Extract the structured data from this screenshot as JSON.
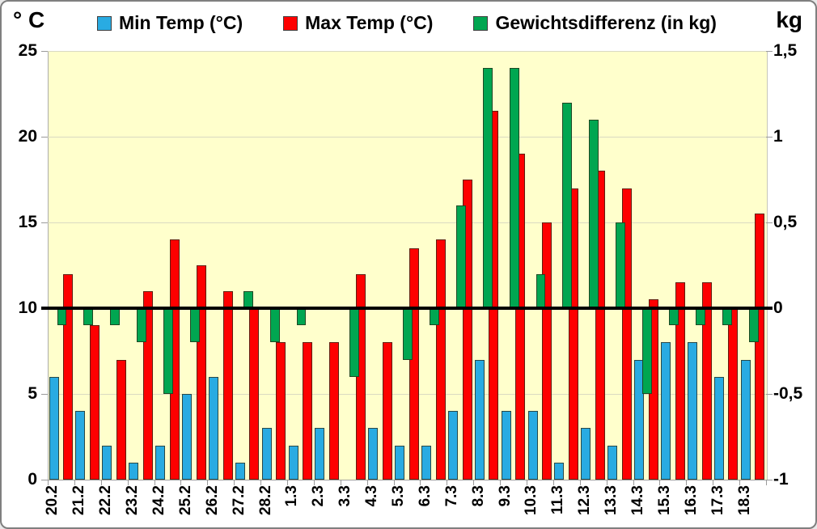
{
  "chart": {
    "left_axis_title": "° C",
    "right_axis_title": "kg"
  },
  "chart_data": {
    "type": "bar",
    "title": "",
    "legend_position": "top",
    "plot_background": "#FFFFCC",
    "grid": true,
    "categories": [
      "20.2",
      "21.2",
      "22.2",
      "23.2",
      "24.2",
      "25.2",
      "26.2",
      "27.2",
      "28.2",
      "1.3",
      "2.3",
      "3.3",
      "4.3",
      "5.3",
      "6.3",
      "7.3",
      "8.3",
      "9.3",
      "10.3",
      "11.3",
      "12.3",
      "13.3",
      "14.3",
      "15.3",
      "16.3",
      "17.3",
      "18.3"
    ],
    "series": [
      {
        "key": "min-temp",
        "name": "Min Temp (°C)",
        "axis": "left",
        "color": "#29ABE2",
        "values": [
          6,
          4,
          2,
          1,
          2,
          5,
          6,
          1,
          3,
          2,
          3,
          0,
          3,
          2,
          2,
          4,
          7,
          4,
          4,
          1,
          3,
          2,
          7,
          8,
          8,
          6,
          7
        ]
      },
      {
        "key": "max-temp",
        "name": "Max Temp (°C)",
        "axis": "left",
        "color": "#FE0000",
        "values": [
          12,
          9,
          7,
          11,
          14,
          12.5,
          11,
          10,
          8,
          8,
          8,
          12,
          8,
          13.5,
          14,
          17.5,
          21.5,
          19,
          15,
          17,
          18,
          17,
          10.5,
          11.5,
          11.5,
          10,
          15.5
        ]
      },
      {
        "key": "gewichtsdifferenz",
        "name": "Gewichtsdifferenz (in kg)",
        "axis": "right",
        "color": "#00A651",
        "values": [
          -0.1,
          -0.1,
          -0.1,
          -0.2,
          -0.5,
          -0.2,
          0,
          0.1,
          -0.2,
          -0.1,
          0,
          -0.4,
          0,
          -0.3,
          -0.1,
          0.6,
          1.4,
          1.4,
          0.2,
          1.2,
          1.1,
          0.5,
          -0.5,
          -0.1,
          -0.1,
          -0.1,
          -0.2
        ]
      }
    ],
    "left_axis": {
      "title": "° C",
      "range": [
        0,
        25
      ],
      "ticks": [
        0,
        5,
        10,
        15,
        20,
        25
      ],
      "tick_labels": [
        "0",
        "5",
        "10",
        "15",
        "20",
        "25"
      ]
    },
    "right_axis": {
      "title": "kg",
      "range": [
        -1,
        1.5
      ],
      "ticks": [
        -1,
        -0.5,
        0,
        0.5,
        1,
        1.5
      ],
      "tick_labels": [
        "-1",
        "-0,5",
        "0",
        "0,5",
        "1",
        "1,5"
      ]
    },
    "baseline": {
      "left_value": 10,
      "right_value": 0,
      "color": "#000000"
    }
  }
}
